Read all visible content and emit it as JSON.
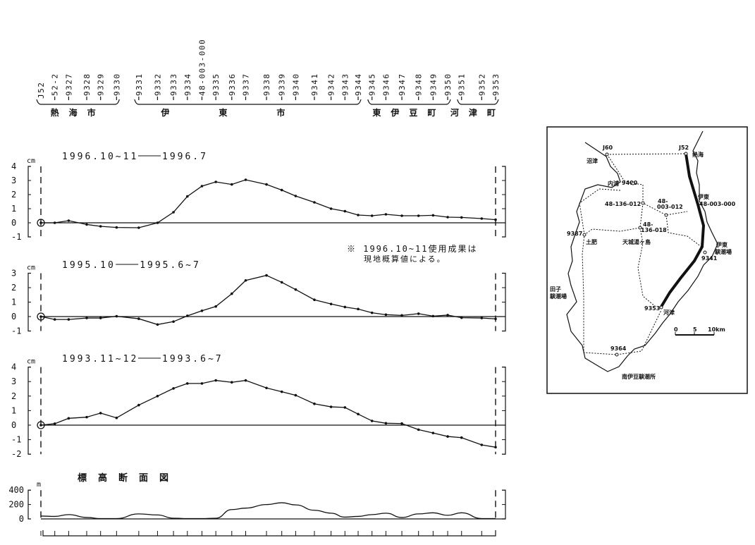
{
  "stations": [
    "J52",
    "52-2",
    "9327",
    "9328",
    "9329",
    "9330",
    "9331",
    "9332",
    "9333",
    "9334",
    "48-003-000",
    "9335",
    "9336",
    "9337",
    "9338",
    "9339",
    "9340",
    "9341",
    "9342",
    "9343",
    "9344",
    "9345",
    "9346",
    "9347",
    "9348",
    "9349",
    "9350",
    "9351",
    "9352",
    "9353"
  ],
  "groups": [
    {
      "label": "熱海市",
      "from": 0,
      "to": 5
    },
    {
      "label": "伊東市",
      "from": 6,
      "to": 20
    },
    {
      "label": "東伊豆町",
      "from": 21,
      "to": 26
    },
    {
      "label": "河津町",
      "from": 27,
      "to": 29
    }
  ],
  "note": {
    "line1": "※ 1996.10~11使用成果は",
    "line2": "現地概算値による。"
  },
  "chart_data": [
    {
      "type": "line",
      "unit": "cm",
      "from": "1996.10~11",
      "to": "1996.7",
      "ylim": [
        -1,
        4
      ],
      "yticks": [
        4,
        3,
        2,
        1,
        0,
        -1
      ],
      "values": [
        0,
        0,
        0.15,
        -0.12,
        -0.25,
        -0.33,
        -0.35,
        0,
        0.75,
        1.87,
        2.6,
        2.9,
        2.72,
        3.05,
        2.72,
        2.32,
        1.9,
        1.45,
        1.0,
        0.82,
        0.55,
        0.5,
        0.6,
        0.5,
        0.5,
        0.53,
        0.4,
        0.38,
        0.3,
        0.22
      ]
    },
    {
      "type": "line",
      "unit": "cm",
      "from": "1995.10",
      "to": "1995.6~7",
      "ylim": [
        -1,
        3
      ],
      "yticks": [
        3,
        2,
        1,
        0,
        -1
      ],
      "values": [
        0,
        -0.2,
        -0.2,
        -0.1,
        -0.1,
        0.02,
        -0.15,
        -0.55,
        -0.35,
        0.05,
        0.4,
        0.7,
        1.58,
        2.5,
        2.85,
        2.37,
        1.87,
        1.16,
        0.87,
        0.66,
        0.52,
        0.26,
        0.13,
        0.08,
        0.2,
        0.03,
        0.1,
        -0.08,
        -0.1,
        -0.16
      ]
    },
    {
      "type": "line",
      "unit": "cm",
      "from": "1993.11~12",
      "to": "1993.6~7",
      "ylim": [
        -2,
        4
      ],
      "yticks": [
        4,
        3,
        2,
        1,
        0,
        -1,
        -2
      ],
      "values": [
        0,
        0.1,
        0.47,
        0.55,
        0.83,
        0.5,
        1.38,
        2.0,
        2.53,
        2.87,
        2.87,
        3.08,
        2.95,
        3.08,
        2.56,
        2.3,
        2.06,
        1.47,
        1.26,
        1.22,
        0.76,
        0.29,
        0.13,
        0.11,
        -0.31,
        -0.54,
        -0.78,
        -0.86,
        -1.36,
        -1.52
      ]
    },
    {
      "type": "area",
      "title": "標高断面図",
      "unit": "m",
      "ylim": [
        0,
        400
      ],
      "yticks": [
        400,
        200,
        0
      ],
      "values": [
        40,
        35,
        60,
        20,
        5,
        5,
        70,
        55,
        10,
        5,
        5,
        10,
        130,
        150,
        200,
        225,
        195,
        120,
        80,
        25,
        35,
        60,
        80,
        20,
        70,
        85,
        50,
        85,
        5,
        5
      ]
    }
  ],
  "map": {
    "labels": {
      "j60": "J60",
      "numazu": "沼津",
      "j52": "J52",
      "atami": "熱海",
      "uchiura": "内浦",
      "s9400": "9400",
      "s48_136_012": "48-136-012",
      "s48_003_012a": "48-",
      "s48_003_012b": "003-012",
      "ito": "伊東",
      "s48_003_000": "48-003-000",
      "s9387": "9387",
      "toi": "土肥",
      "s48_136_018a": "48-",
      "s48_136_018b": "136-018",
      "amagi": "天城湯ヶ島",
      "ito_tide1": "伊東",
      "ito_tide2": "験潮場",
      "s9341": "9341",
      "tago1": "田子",
      "tago2": "験潮場",
      "s9353": "9353",
      "kawazu": "河津",
      "scale0": "0",
      "scale5": "5",
      "scale10": "10km",
      "s9364": "9364",
      "minamiizu": "南伊豆験潮所"
    }
  }
}
